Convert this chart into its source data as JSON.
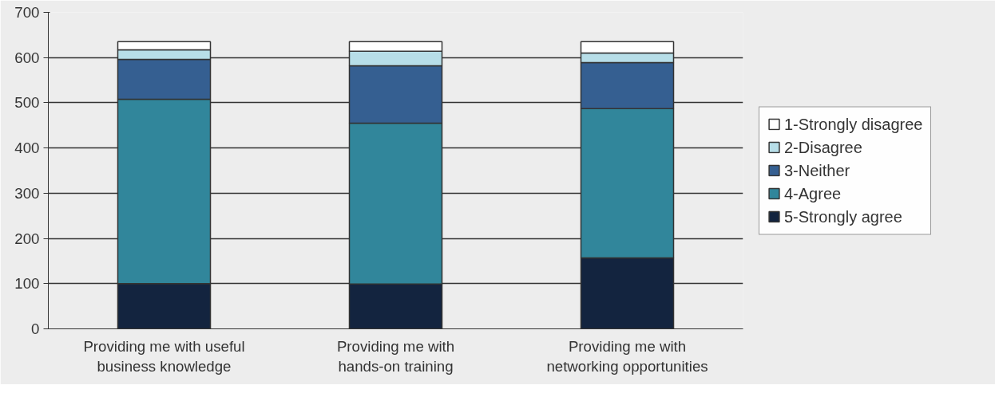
{
  "chart_data": {
    "type": "bar",
    "stacked": true,
    "categories": [
      "Providing me with useful\nbusiness knowledge",
      "Providing me with\nhands-on training",
      "Providing me with\nnetworking opportunities"
    ],
    "series": [
      {
        "name": "5-Strongly agree",
        "color": "#13243f",
        "values": [
          100,
          99,
          157
        ]
      },
      {
        "name": "4-Agree",
        "color": "#31869b",
        "values": [
          408,
          356,
          330
        ]
      },
      {
        "name": "3-Neither",
        "color": "#355f91",
        "values": [
          88,
          127,
          102
        ]
      },
      {
        "name": "2-Disagree",
        "color": "#b7dee8",
        "values": [
          21,
          32,
          21
        ]
      },
      {
        "name": "1-Strongly disagree",
        "color": "#ffffff",
        "values": [
          18,
          21,
          25
        ]
      }
    ],
    "ylim": [
      0,
      700
    ],
    "yticks": [
      0,
      100,
      200,
      300,
      400,
      500,
      600,
      700
    ],
    "grid": "y",
    "legend": "right"
  }
}
